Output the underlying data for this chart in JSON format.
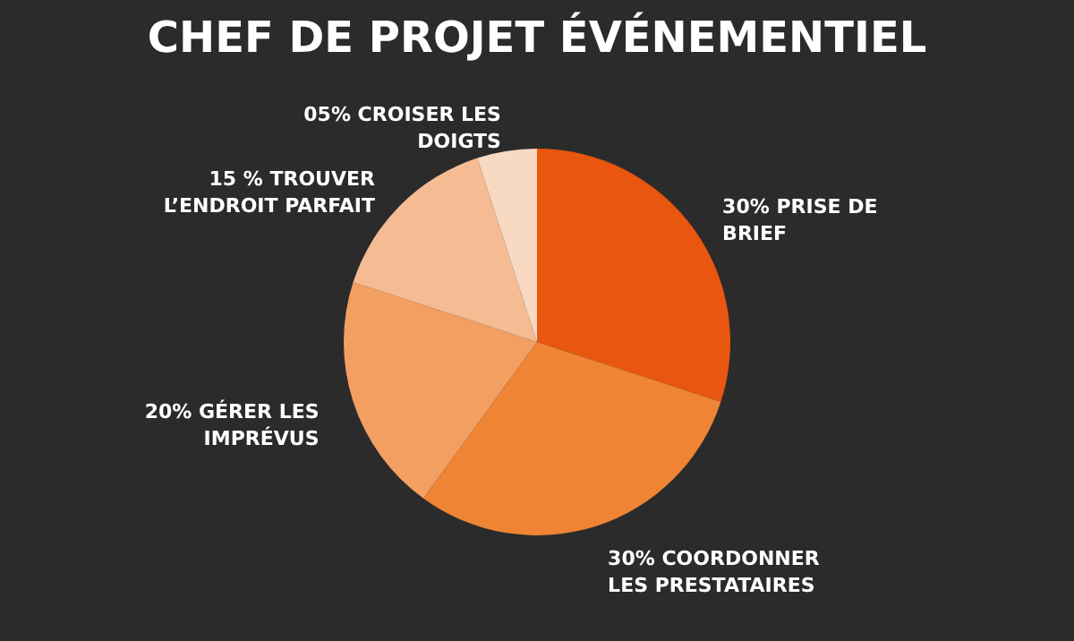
{
  "chart_data": {
    "type": "pie",
    "title": "CHEF DE PROJET ÉVÉNEMENTIEL",
    "categories": [
      "PRISE DE BRIEF",
      "COORDONNER LES PRESTATAIRES",
      "GÉRER LES IMPRÉVUS",
      "TROUVER L’ENDROIT PARFAIT",
      "CROISER LES DOIGTS"
    ],
    "values": [
      30,
      30,
      20,
      15,
      5
    ],
    "value_labels": [
      "30%",
      "30%",
      "20%",
      "15 %",
      "05%"
    ],
    "colors": [
      "#e8560f",
      "#ef8435",
      "#f39f62",
      "#f5bc93",
      "#f8d9c2"
    ]
  }
}
